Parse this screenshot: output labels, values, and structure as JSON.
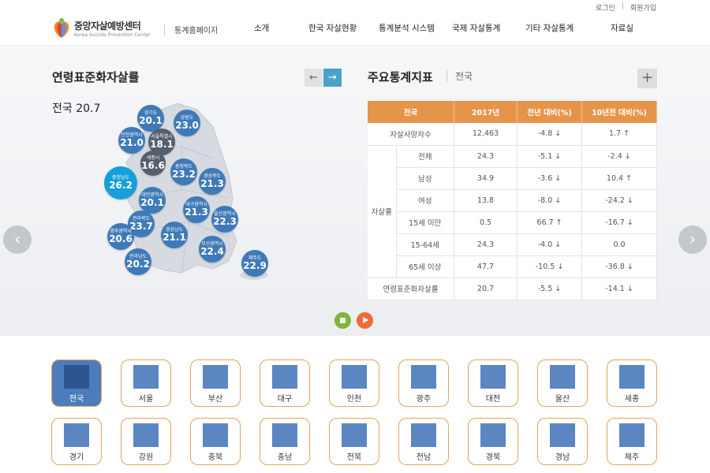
{
  "top_links": {
    "login": "로그인",
    "sep": "|",
    "join": "회원가입"
  },
  "logo": {
    "korean": "중앙자살예방센터",
    "english": "Korea Suicide Prevention Center"
  },
  "stats_home": "통계홈페이지",
  "nav": [
    "소개",
    "한국 자살현황",
    "통계분석 시스템",
    "국제 자살통계",
    "기타 자살통계",
    "자료실"
  ],
  "left_panel": {
    "title": "연령표준화자살률",
    "national_label": "전국 20.7"
  },
  "arrows": {
    "prev": "←",
    "next": "→"
  },
  "map_regions": [
    {
      "name": "경기도",
      "value": "20.1"
    },
    {
      "name": "강원도",
      "value": "23.0"
    },
    {
      "name": "인천광역시",
      "value": "21.0"
    },
    {
      "name": "서울특별시",
      "value": "18.1"
    },
    {
      "name": "세종시",
      "value": "16.6"
    },
    {
      "name": "충청북도",
      "value": "23.2"
    },
    {
      "name": "경상북도",
      "value": "21.3"
    },
    {
      "name": "충청남도",
      "value": "26.2"
    },
    {
      "name": "대전광역시",
      "value": "20.1"
    },
    {
      "name": "대구광역시",
      "value": "21.3"
    },
    {
      "name": "울산광역시",
      "value": "22.3"
    },
    {
      "name": "전라북도",
      "value": "23.7"
    },
    {
      "name": "광주광역시",
      "value": "20.6"
    },
    {
      "name": "경상남도",
      "value": "21.1"
    },
    {
      "name": "부산광역시",
      "value": "22.4"
    },
    {
      "name": "전라남도",
      "value": "20.2"
    },
    {
      "name": "제주도",
      "value": "22.9"
    }
  ],
  "key_stats": {
    "title": "주요통계지표",
    "subtitle": "전국",
    "plus": "+",
    "headers": [
      "전국",
      "2017년",
      "전년 대비(%)",
      "10년전 대비(%)"
    ],
    "group_label": "자살률",
    "rows": [
      {
        "label": "자살사망자수",
        "year": "12,463",
        "yoy": "-4.8 ↓",
        "decade": "1.7 ↑"
      },
      {
        "label": "전체",
        "year": "24.3",
        "yoy": "-5.1 ↓",
        "decade": "-2.4 ↓"
      },
      {
        "label": "남성",
        "year": "34.9",
        "yoy": "-3.6 ↓",
        "decade": "10.4 ↑"
      },
      {
        "label": "여성",
        "year": "13.8",
        "yoy": "-8.0 ↓",
        "decade": "-24.2 ↓"
      },
      {
        "label": "15세 미만",
        "year": "0.5",
        "yoy": "66.7 ↑",
        "decade": "-16.7 ↓"
      },
      {
        "label": "15-64세",
        "year": "24.3",
        "yoy": "-4.0 ↓",
        "decade": "0.0"
      },
      {
        "label": "65세 이상",
        "year": "47.7",
        "yoy": "-10.5 ↓",
        "decade": "-36.8 ↓"
      },
      {
        "label": "연령표준화자살률",
        "year": "20.7",
        "yoy": "-5.5 ↓",
        "decade": "-14.1 ↓"
      }
    ]
  },
  "side_arrows": {
    "left": "‹",
    "right": "›"
  },
  "region_tiles": [
    "전국",
    "서울",
    "부산",
    "대구",
    "인천",
    "광주",
    "대전",
    "울산",
    "세종",
    "경기",
    "강원",
    "충북",
    "충남",
    "전북",
    "전남",
    "경북",
    "경남",
    "제주"
  ],
  "colors": {
    "accent_orange": "#e7944b",
    "accent_blue": "#3f7ab8",
    "selected_blue": "#169fd8",
    "negative": "#e05a2b",
    "positive": "#3a76b8"
  }
}
